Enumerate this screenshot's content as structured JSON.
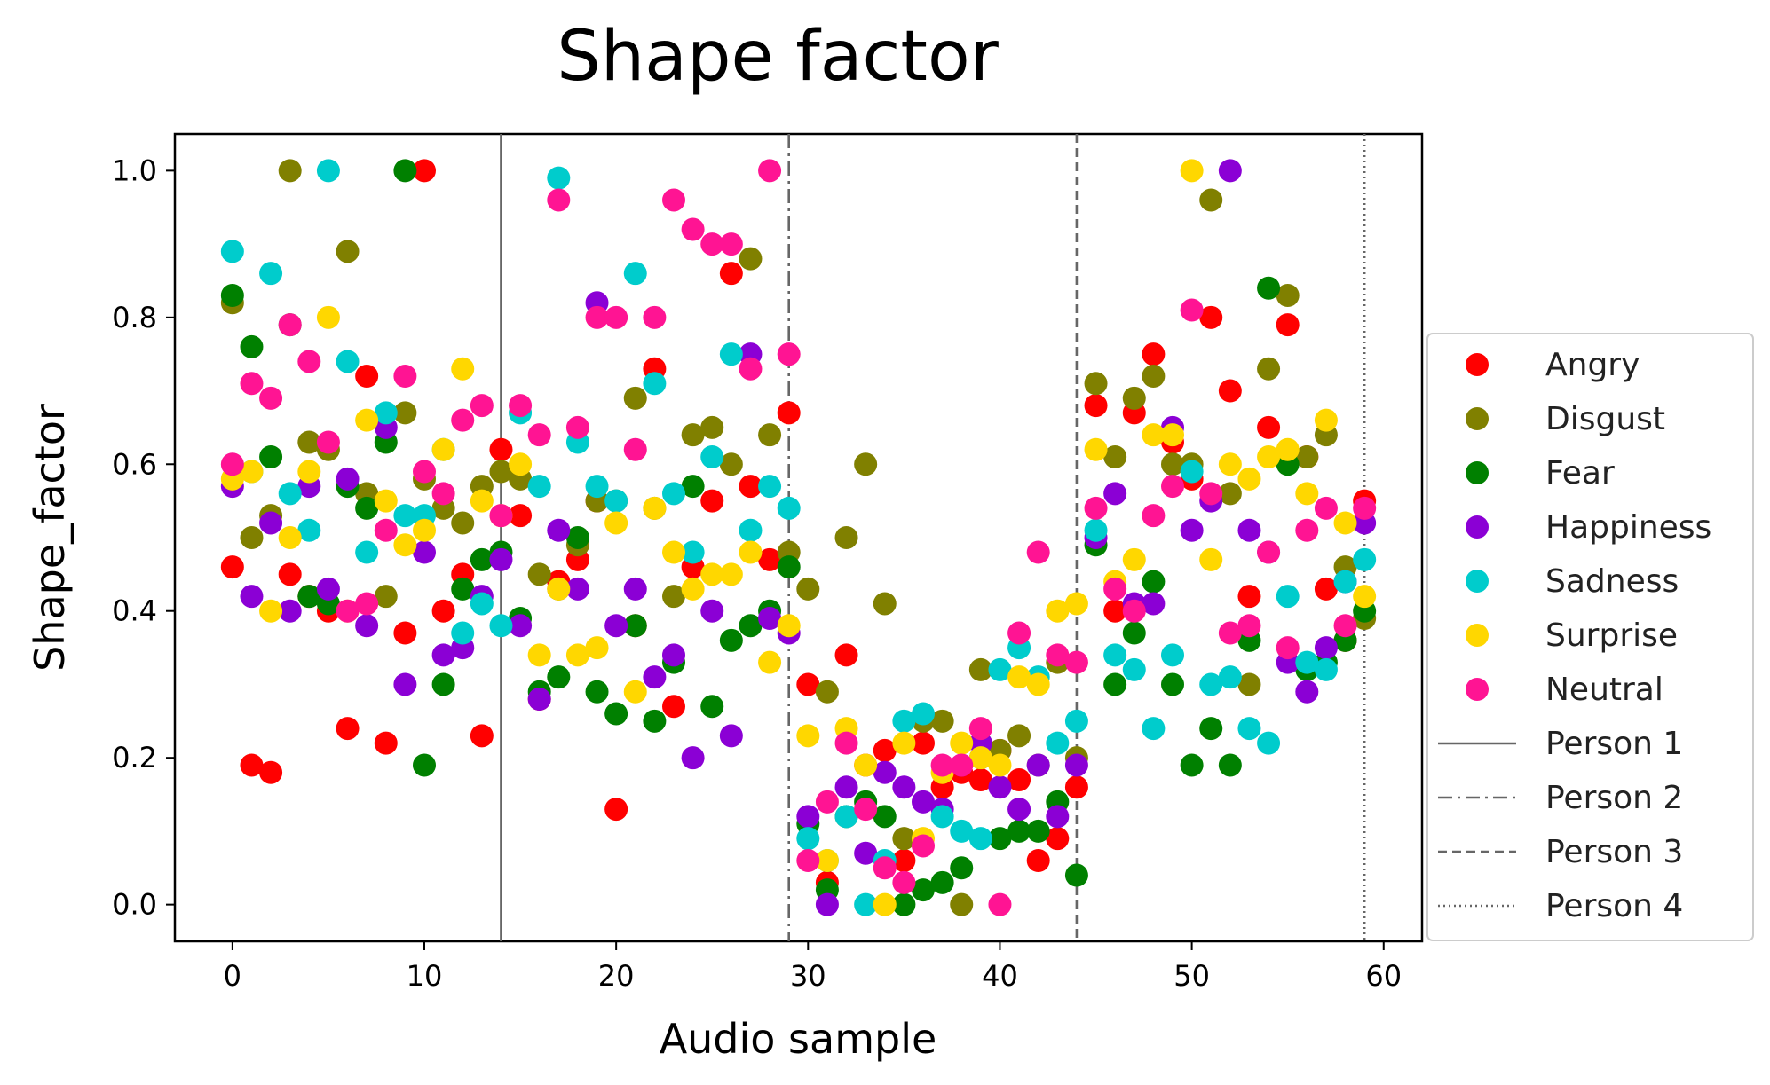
{
  "chart_data": {
    "type": "scatter",
    "title": "Shape factor",
    "xlabel": "Audio sample",
    "ylabel": "Shape_factor",
    "xlim": [
      -3,
      62
    ],
    "ylim": [
      -0.05,
      1.05
    ],
    "xticks": [
      0,
      10,
      20,
      30,
      40,
      50,
      60
    ],
    "yticks": [
      0.0,
      0.2,
      0.4,
      0.6,
      0.8,
      1.0
    ],
    "xtick_labels": [
      "0",
      "10",
      "20",
      "30",
      "40",
      "50",
      "60"
    ],
    "ytick_labels": [
      "0.0",
      "0.2",
      "0.4",
      "0.6",
      "0.8",
      "1.0"
    ],
    "grid": false,
    "legend_position": "right",
    "series": [
      {
        "name": "Angry",
        "color": "#ff0000",
        "x": [
          0,
          1,
          2,
          3,
          4,
          5,
          6,
          7,
          8,
          9,
          10,
          11,
          12,
          13,
          14,
          15,
          16,
          17,
          18,
          19,
          20,
          21,
          22,
          23,
          24,
          25,
          26,
          27,
          28,
          29,
          30,
          31,
          32,
          33,
          34,
          35,
          36,
          37,
          38,
          39,
          40,
          41,
          42,
          43,
          44,
          45,
          46,
          47,
          48,
          49,
          50,
          51,
          52,
          53,
          54,
          55,
          56,
          57,
          58,
          59
        ],
        "y": [
          0.46,
          0.19,
          0.18,
          0.45,
          0.42,
          0.4,
          0.24,
          0.72,
          0.22,
          0.37,
          1.0,
          0.4,
          0.45,
          0.23,
          0.62,
          0.53,
          0.28,
          0.44,
          0.47,
          0.55,
          0.13,
          0.38,
          0.73,
          0.27,
          0.46,
          0.55,
          0.86,
          0.57,
          0.47,
          0.67,
          0.3,
          0.03,
          0.34,
          0.19,
          0.21,
          0.06,
          0.22,
          0.16,
          0.18,
          0.17,
          0.21,
          0.17,
          0.06,
          0.09,
          0.16,
          0.68,
          0.4,
          0.67,
          0.75,
          0.63,
          0.58,
          0.8,
          0.7,
          0.42,
          0.65,
          0.79,
          0.61,
          0.43,
          0.36,
          0.55
        ]
      },
      {
        "name": "Disgust",
        "color": "#808000",
        "x": [
          0,
          1,
          2,
          3,
          4,
          5,
          6,
          7,
          8,
          9,
          10,
          11,
          12,
          13,
          14,
          15,
          16,
          17,
          18,
          19,
          20,
          21,
          22,
          23,
          24,
          25,
          26,
          27,
          28,
          29,
          30,
          31,
          32,
          33,
          34,
          35,
          36,
          37,
          38,
          39,
          40,
          41,
          42,
          43,
          44,
          45,
          46,
          47,
          48,
          49,
          50,
          51,
          52,
          53,
          54,
          55,
          56,
          57,
          58,
          59
        ],
        "y": [
          0.82,
          0.5,
          0.53,
          1.0,
          0.63,
          0.62,
          0.89,
          0.56,
          0.42,
          0.67,
          0.58,
          0.54,
          0.52,
          0.57,
          0.59,
          0.58,
          0.45,
          0.43,
          0.49,
          0.55,
          0.55,
          0.69,
          0.54,
          0.42,
          0.64,
          0.65,
          0.6,
          0.88,
          0.64,
          0.48,
          0.43,
          0.29,
          0.5,
          0.6,
          0.41,
          0.09,
          0.25,
          0.25,
          0.0,
          0.32,
          0.21,
          0.23,
          0.19,
          0.33,
          0.2,
          0.71,
          0.61,
          0.69,
          0.72,
          0.6,
          0.6,
          0.96,
          0.56,
          0.3,
          0.73,
          0.83,
          0.61,
          0.64,
          0.46,
          0.39
        ]
      },
      {
        "name": "Fear",
        "color": "#008000",
        "x": [
          0,
          1,
          2,
          3,
          4,
          5,
          6,
          7,
          8,
          9,
          10,
          11,
          12,
          13,
          14,
          15,
          16,
          17,
          18,
          19,
          20,
          21,
          22,
          23,
          24,
          25,
          26,
          27,
          28,
          29,
          30,
          31,
          32,
          33,
          34,
          35,
          36,
          37,
          38,
          39,
          40,
          41,
          42,
          43,
          44,
          45,
          46,
          47,
          48,
          49,
          50,
          51,
          52,
          53,
          54,
          55,
          56,
          57,
          58,
          59
        ],
        "y": [
          0.83,
          0.76,
          0.61,
          0.79,
          0.42,
          0.41,
          0.57,
          0.54,
          0.63,
          1.0,
          0.19,
          0.3,
          0.43,
          0.47,
          0.48,
          0.39,
          0.29,
          0.31,
          0.5,
          0.29,
          0.26,
          0.38,
          0.25,
          0.33,
          0.57,
          0.27,
          0.36,
          0.38,
          0.4,
          0.46,
          0.11,
          0.02,
          0.12,
          0.14,
          0.12,
          0.0,
          0.02,
          0.03,
          0.05,
          0.2,
          0.09,
          0.1,
          0.1,
          0.14,
          0.04,
          0.49,
          0.3,
          0.37,
          0.44,
          0.3,
          0.19,
          0.24,
          0.19,
          0.36,
          0.84,
          0.6,
          0.32,
          0.33,
          0.36,
          0.4
        ]
      },
      {
        "name": "Happiness",
        "color": "#8b00d5",
        "x": [
          0,
          1,
          2,
          3,
          4,
          5,
          6,
          7,
          8,
          9,
          10,
          11,
          12,
          13,
          14,
          15,
          16,
          17,
          18,
          19,
          20,
          21,
          22,
          23,
          24,
          25,
          26,
          27,
          28,
          29,
          30,
          31,
          32,
          33,
          34,
          35,
          36,
          37,
          38,
          39,
          40,
          41,
          42,
          43,
          44,
          45,
          46,
          47,
          48,
          49,
          50,
          51,
          52,
          53,
          54,
          55,
          56,
          57,
          58,
          59
        ],
        "y": [
          0.57,
          0.42,
          0.52,
          0.4,
          0.57,
          0.43,
          0.58,
          0.38,
          0.65,
          0.3,
          0.48,
          0.34,
          0.35,
          0.42,
          0.47,
          0.38,
          0.28,
          0.51,
          0.43,
          0.82,
          0.38,
          0.43,
          0.31,
          0.34,
          0.2,
          0.4,
          0.23,
          0.75,
          0.39,
          0.37,
          0.12,
          0.0,
          0.16,
          0.07,
          0.18,
          0.16,
          0.14,
          0.13,
          0.19,
          0.22,
          0.16,
          0.13,
          0.19,
          0.12,
          0.19,
          0.5,
          0.56,
          0.41,
          0.41,
          0.65,
          0.51,
          0.55,
          1.0,
          0.51,
          0.48,
          0.33,
          0.29,
          0.35,
          0.44,
          0.52
        ]
      },
      {
        "name": "Sadness",
        "color": "#00cccc",
        "x": [
          0,
          1,
          2,
          3,
          4,
          5,
          6,
          7,
          8,
          9,
          10,
          11,
          12,
          13,
          14,
          15,
          16,
          17,
          18,
          19,
          20,
          21,
          22,
          23,
          24,
          25,
          26,
          27,
          28,
          29,
          30,
          31,
          32,
          33,
          34,
          35,
          36,
          37,
          38,
          39,
          40,
          41,
          42,
          43,
          44,
          45,
          46,
          47,
          48,
          49,
          50,
          51,
          52,
          53,
          54,
          55,
          56,
          57,
          58,
          59
        ],
        "y": [
          0.89,
          0.59,
          0.86,
          0.56,
          0.51,
          1.0,
          0.74,
          0.48,
          0.67,
          0.53,
          0.53,
          0.62,
          0.37,
          0.41,
          0.38,
          0.67,
          0.57,
          0.99,
          0.63,
          0.57,
          0.55,
          0.86,
          0.71,
          0.56,
          0.48,
          0.61,
          0.75,
          0.51,
          0.57,
          0.54,
          0.09,
          0.06,
          0.12,
          0.0,
          0.06,
          0.25,
          0.26,
          0.12,
          0.1,
          0.09,
          0.32,
          0.35,
          0.31,
          0.22,
          0.25,
          0.51,
          0.34,
          0.32,
          0.24,
          0.34,
          0.59,
          0.3,
          0.31,
          0.24,
          0.22,
          0.42,
          0.33,
          0.32,
          0.44,
          0.47
        ]
      },
      {
        "name": "Surprise",
        "color": "#ffd700",
        "x": [
          0,
          1,
          2,
          3,
          4,
          5,
          6,
          7,
          8,
          9,
          10,
          11,
          12,
          13,
          14,
          15,
          16,
          17,
          18,
          19,
          20,
          21,
          22,
          23,
          24,
          25,
          26,
          27,
          28,
          29,
          30,
          31,
          32,
          33,
          34,
          35,
          36,
          37,
          38,
          39,
          40,
          41,
          42,
          43,
          44,
          45,
          46,
          47,
          48,
          49,
          50,
          51,
          52,
          53,
          54,
          55,
          56,
          57,
          58,
          59
        ],
        "y": [
          0.58,
          0.59,
          0.4,
          0.5,
          0.59,
          0.8,
          0.4,
          0.66,
          0.55,
          0.49,
          0.51,
          0.62,
          0.73,
          0.55,
          0.53,
          0.6,
          0.34,
          0.43,
          0.34,
          0.35,
          0.52,
          0.29,
          0.54,
          0.48,
          0.43,
          0.45,
          0.45,
          0.48,
          0.33,
          0.38,
          0.23,
          0.06,
          0.24,
          0.19,
          0.0,
          0.22,
          0.09,
          0.18,
          0.22,
          0.2,
          0.19,
          0.31,
          0.3,
          0.4,
          0.41,
          0.62,
          0.44,
          0.47,
          0.64,
          0.64,
          1.0,
          0.47,
          0.6,
          0.58,
          0.61,
          0.62,
          0.56,
          0.66,
          0.52,
          0.42
        ]
      },
      {
        "name": "Neutral",
        "color": "#ff1493",
        "x": [
          0,
          1,
          2,
          3,
          4,
          5,
          6,
          7,
          8,
          9,
          10,
          11,
          12,
          13,
          14,
          15,
          16,
          17,
          18,
          19,
          20,
          21,
          22,
          23,
          24,
          25,
          26,
          27,
          28,
          29,
          30,
          31,
          32,
          33,
          34,
          35,
          36,
          37,
          38,
          39,
          40,
          41,
          42,
          43,
          44,
          45,
          46,
          47,
          48,
          49,
          50,
          51,
          52,
          53,
          54,
          55,
          56,
          57,
          58,
          59
        ],
        "y": [
          0.6,
          0.71,
          0.69,
          0.79,
          0.74,
          0.63,
          0.4,
          0.41,
          0.51,
          0.72,
          0.59,
          0.56,
          0.66,
          0.68,
          0.53,
          0.68,
          0.64,
          0.96,
          0.65,
          0.8,
          0.8,
          0.62,
          0.8,
          0.96,
          0.92,
          0.9,
          0.9,
          0.73,
          1.0,
          0.75,
          0.06,
          0.14,
          0.22,
          0.13,
          0.05,
          0.03,
          0.08,
          0.19,
          0.19,
          0.24,
          0.0,
          0.37,
          0.48,
          0.34,
          0.33,
          0.54,
          0.43,
          0.4,
          0.53,
          0.57,
          0.81,
          0.56,
          0.37,
          0.38,
          0.48,
          0.35,
          0.51,
          0.54,
          0.38,
          0.54
        ]
      }
    ],
    "person_lines": [
      {
        "name": "Person 1",
        "x": 14,
        "style": "solid"
      },
      {
        "name": "Person 2",
        "x": 29,
        "style": "dashdot"
      },
      {
        "name": "Person 3",
        "x": 44,
        "style": "dashed"
      },
      {
        "name": "Person 4",
        "x": 59,
        "style": "dotted"
      }
    ]
  }
}
